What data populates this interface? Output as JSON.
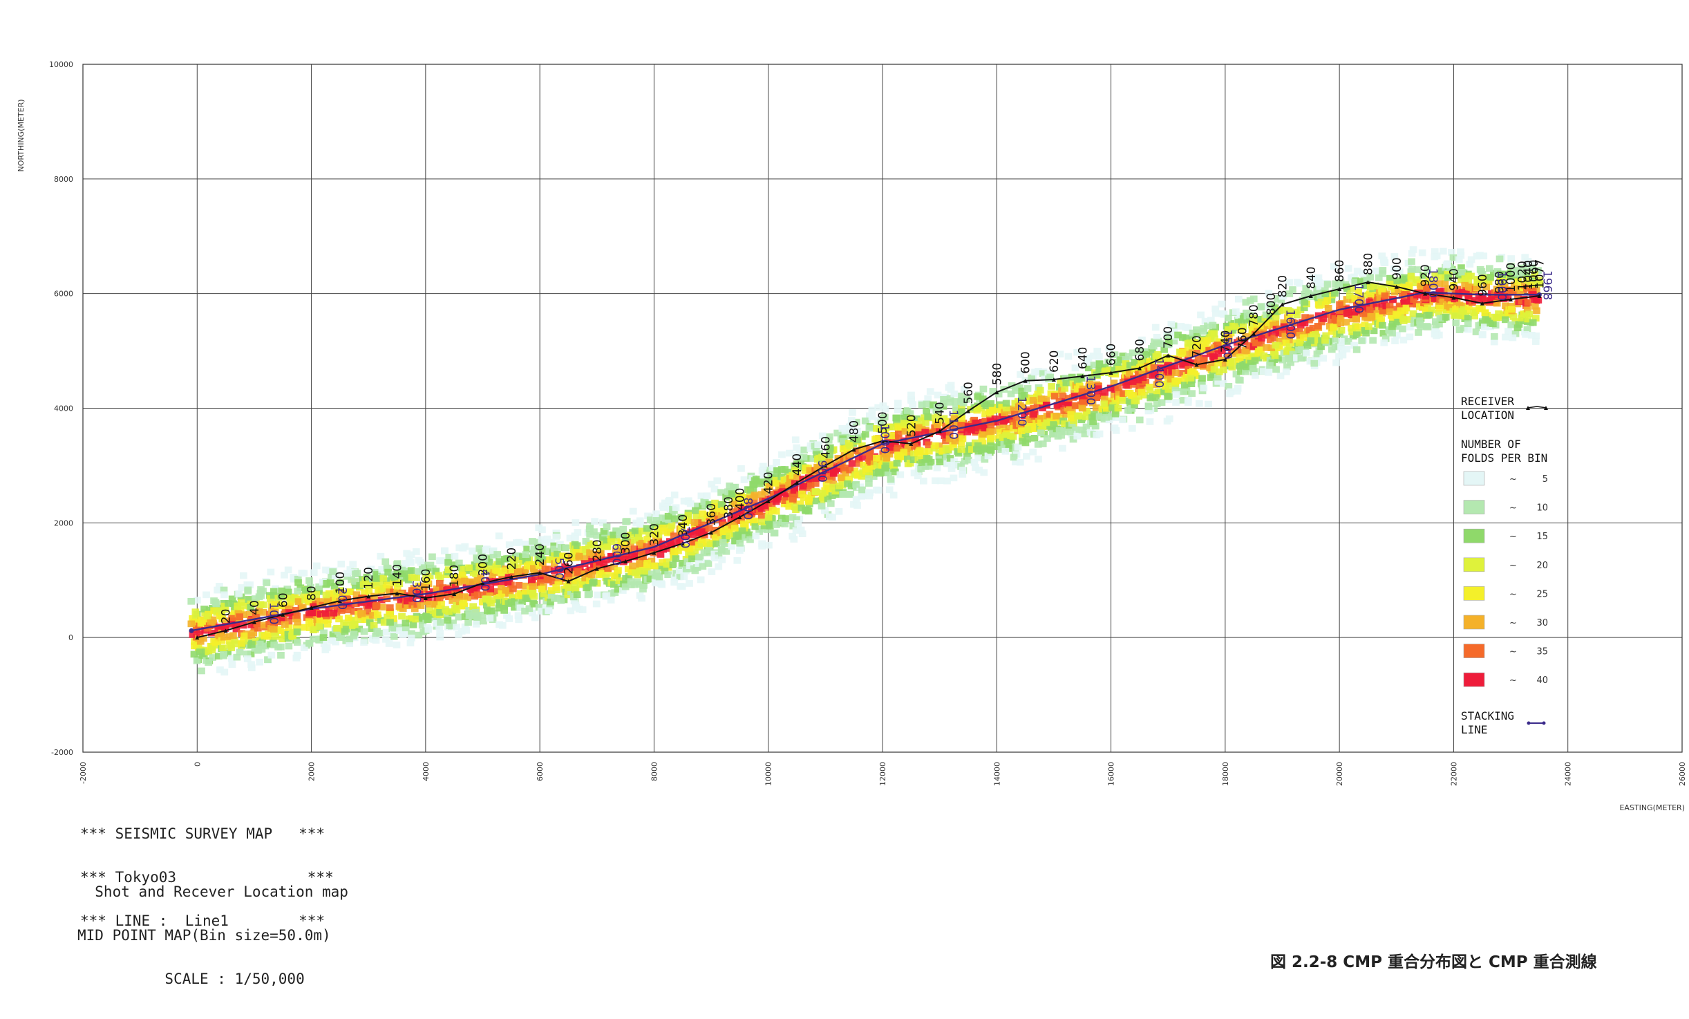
{
  "chart_data": {
    "type": "heatmap",
    "xlabel": "EASTING(METER)",
    "ylabel": "NORTHING(METER)",
    "xlim": [
      -2000,
      26000
    ],
    "ylim": [
      -2000,
      10000
    ],
    "x_ticks": [
      -2000,
      0,
      2000,
      4000,
      6000,
      8000,
      10000,
      12000,
      14000,
      16000,
      18000,
      20000,
      22000,
      24000,
      26000
    ],
    "y_ticks": [
      -2000,
      0,
      2000,
      4000,
      6000,
      8000,
      10000
    ],
    "grid": true,
    "receiver_line": [
      [
        0,
        0
      ],
      [
        500,
        120
      ],
      [
        1000,
        270
      ],
      [
        1500,
        400
      ],
      [
        2000,
        520
      ],
      [
        2500,
        640
      ],
      [
        3000,
        720
      ],
      [
        3500,
        770
      ],
      [
        4000,
        690
      ],
      [
        4500,
        760
      ],
      [
        5000,
        950
      ],
      [
        5500,
        1060
      ],
      [
        6000,
        1130
      ],
      [
        6500,
        980
      ],
      [
        7000,
        1200
      ],
      [
        7500,
        1330
      ],
      [
        8000,
        1480
      ],
      [
        8500,
        1640
      ],
      [
        9000,
        1830
      ],
      [
        9500,
        2100
      ],
      [
        10000,
        2380
      ],
      [
        10500,
        2700
      ],
      [
        11000,
        3000
      ],
      [
        11500,
        3280
      ],
      [
        12000,
        3430
      ],
      [
        12500,
        3380
      ],
      [
        13000,
        3600
      ],
      [
        13500,
        3950
      ],
      [
        14000,
        4280
      ],
      [
        14500,
        4480
      ],
      [
        15000,
        4500
      ],
      [
        15500,
        4560
      ],
      [
        16000,
        4620
      ],
      [
        16500,
        4700
      ],
      [
        17000,
        4920
      ],
      [
        17500,
        4760
      ],
      [
        18000,
        4850
      ],
      [
        18500,
        5300
      ],
      [
        19000,
        5810
      ],
      [
        19500,
        5960
      ],
      [
        20000,
        6080
      ],
      [
        20500,
        6200
      ],
      [
        21000,
        6120
      ],
      [
        21500,
        6000
      ],
      [
        22000,
        5930
      ],
      [
        22500,
        5830
      ],
      [
        23000,
        5900
      ],
      [
        23500,
        5960
      ]
    ],
    "receiver_labels": [
      {
        "text": "20",
        "x": 500,
        "y": 120
      },
      {
        "text": "40",
        "x": 1000,
        "y": 270
      },
      {
        "text": "60",
        "x": 1500,
        "y": 400
      },
      {
        "text": "80",
        "x": 2000,
        "y": 520
      },
      {
        "text": "100",
        "x": 2500,
        "y": 640
      },
      {
        "text": "120",
        "x": 3000,
        "y": 720
      },
      {
        "text": "140",
        "x": 3500,
        "y": 770
      },
      {
        "text": "160",
        "x": 4000,
        "y": 690
      },
      {
        "text": "180",
        "x": 4500,
        "y": 760
      },
      {
        "text": "200",
        "x": 5000,
        "y": 950
      },
      {
        "text": "220",
        "x": 5500,
        "y": 1060
      },
      {
        "text": "240",
        "x": 6000,
        "y": 1130
      },
      {
        "text": "260",
        "x": 6500,
        "y": 980
      },
      {
        "text": "280",
        "x": 7000,
        "y": 1200
      },
      {
        "text": "300",
        "x": 7500,
        "y": 1330
      },
      {
        "text": "320",
        "x": 8000,
        "y": 1480
      },
      {
        "text": "340",
        "x": 8500,
        "y": 1640
      },
      {
        "text": "360",
        "x": 9000,
        "y": 1830
      },
      {
        "text": "380",
        "x": 9300,
        "y": 1950
      },
      {
        "text": "400",
        "x": 9500,
        "y": 2100
      },
      {
        "text": "420",
        "x": 10000,
        "y": 2380
      },
      {
        "text": "440",
        "x": 10500,
        "y": 2700
      },
      {
        "text": "460",
        "x": 11000,
        "y": 3000
      },
      {
        "text": "480",
        "x": 11500,
        "y": 3280
      },
      {
        "text": "500",
        "x": 12000,
        "y": 3430
      },
      {
        "text": "520",
        "x": 12500,
        "y": 3380
      },
      {
        "text": "540",
        "x": 13000,
        "y": 3600
      },
      {
        "text": "560",
        "x": 13500,
        "y": 3950
      },
      {
        "text": "580",
        "x": 14000,
        "y": 4280
      },
      {
        "text": "600",
        "x": 14500,
        "y": 4480
      },
      {
        "text": "620",
        "x": 15000,
        "y": 4500
      },
      {
        "text": "640",
        "x": 15500,
        "y": 4560
      },
      {
        "text": "660",
        "x": 16000,
        "y": 4620
      },
      {
        "text": "680",
        "x": 16500,
        "y": 4700
      },
      {
        "text": "700",
        "x": 17000,
        "y": 4920
      },
      {
        "text": "720",
        "x": 17500,
        "y": 4760
      },
      {
        "text": "740",
        "x": 18000,
        "y": 4850
      },
      {
        "text": "760",
        "x": 18300,
        "y": 4900
      },
      {
        "text": "780",
        "x": 18500,
        "y": 5300
      },
      {
        "text": "800",
        "x": 18800,
        "y": 5500
      },
      {
        "text": "820",
        "x": 19000,
        "y": 5810
      },
      {
        "text": "840",
        "x": 19500,
        "y": 5960
      },
      {
        "text": "860",
        "x": 20000,
        "y": 6080
      },
      {
        "text": "880",
        "x": 20500,
        "y": 6200
      },
      {
        "text": "900",
        "x": 21000,
        "y": 6120
      },
      {
        "text": "920",
        "x": 21500,
        "y": 6000
      },
      {
        "text": "940",
        "x": 22000,
        "y": 5930
      },
      {
        "text": "960",
        "x": 22500,
        "y": 5830
      },
      {
        "text": "980",
        "x": 22800,
        "y": 5880
      },
      {
        "text": "1000",
        "x": 23000,
        "y": 5900
      },
      {
        "text": "1020",
        "x": 23200,
        "y": 5930
      },
      {
        "text": "1040",
        "x": 23300,
        "y": 5940
      },
      {
        "text": "1060",
        "x": 23400,
        "y": 5950
      },
      {
        "text": "1077",
        "x": 23500,
        "y": 5960
      }
    ],
    "stacking_line": [
      [
        -100,
        120
      ],
      [
        2000,
        500
      ],
      [
        4000,
        760
      ],
      [
        6000,
        1100
      ],
      [
        8000,
        1580
      ],
      [
        10000,
        2420
      ],
      [
        12000,
        3380
      ],
      [
        14000,
        3780
      ],
      [
        16000,
        4380
      ],
      [
        18000,
        5100
      ],
      [
        20000,
        5720
      ],
      [
        21500,
        6020
      ],
      [
        22500,
        5980
      ],
      [
        23500,
        5980
      ]
    ],
    "stacking_labels": [
      {
        "text": "100",
        "x": 1200,
        "y": 320
      },
      {
        "text": "200",
        "x": 2400,
        "y": 580
      },
      {
        "text": "300",
        "x": 3700,
        "y": 700
      },
      {
        "text": "400",
        "x": 4900,
        "y": 900
      },
      {
        "text": "500",
        "x": 6200,
        "y": 1100
      },
      {
        "text": "600",
        "x": 7200,
        "y": 1350
      },
      {
        "text": "700",
        "x": 8400,
        "y": 1650
      },
      {
        "text": "800",
        "x": 9500,
        "y": 2150
      },
      {
        "text": "900",
        "x": 10800,
        "y": 2800
      },
      {
        "text": "1000",
        "x": 11900,
        "y": 3300
      },
      {
        "text": "1100",
        "x": 13100,
        "y": 3550
      },
      {
        "text": "1200",
        "x": 14300,
        "y": 3780
      },
      {
        "text": "1300",
        "x": 15500,
        "y": 4150
      },
      {
        "text": "1400",
        "x": 16700,
        "y": 4450
      },
      {
        "text": "1500",
        "x": 17900,
        "y": 4950
      },
      {
        "text": "1600",
        "x": 19000,
        "y": 5300
      },
      {
        "text": "1700",
        "x": 20200,
        "y": 5750
      },
      {
        "text": "1800",
        "x": 21500,
        "y": 6020
      },
      {
        "text": "1900",
        "x": 22700,
        "y": 5970
      },
      {
        "text": "1968",
        "x": 23500,
        "y": 5980
      }
    ],
    "fold_band": [
      [
        -100,
        130
      ],
      [
        2000,
        520
      ],
      [
        4000,
        800
      ],
      [
        6000,
        1130
      ],
      [
        8000,
        1600
      ],
      [
        10000,
        2450
      ],
      [
        12000,
        3400
      ],
      [
        14000,
        3820
      ],
      [
        16000,
        4400
      ],
      [
        18000,
        5100
      ],
      [
        20000,
        5720
      ],
      [
        21500,
        6050
      ],
      [
        22500,
        5990
      ],
      [
        23500,
        5980
      ]
    ],
    "fold_bins": {
      "size": 50,
      "band_width": 900
    },
    "legend": {
      "receiver_title": "RECEIVER\nLOCATION",
      "folds_title": "NUMBER OF\nFOLDS PER BIN",
      "stacking_title": "STACKING\nLINE",
      "fold_classes": [
        {
          "max": "5",
          "color": "#e4f6f6"
        },
        {
          "max": "10",
          "color": "#b4e8b0"
        },
        {
          "max": "15",
          "color": "#8fd96a"
        },
        {
          "max": "20",
          "color": "#dff23b"
        },
        {
          "max": "25",
          "color": "#f4f02a"
        },
        {
          "max": "30",
          "color": "#f4b12a"
        },
        {
          "max": "35",
          "color": "#f56a2a"
        },
        {
          "max": "40",
          "color": "#ee1c3a"
        }
      ],
      "tilde": "~",
      "placement": "right"
    },
    "colors": {
      "receiver": "#111111",
      "stacking": "#3a2a8a",
      "stacking_label": "#3a2a8a",
      "grid": "#444444"
    }
  },
  "info": {
    "title_lines": [
      "*** SEISMIC SURVEY MAP   ***",
      "*** Tokyo03               ***",
      "*** LINE :  Line1        ***"
    ],
    "map_lines": [
      "  Shot and Recever Location map",
      "MID POINT MAP(Bin size=50.0m)",
      "          SCALE : 1/50,000"
    ]
  },
  "caption": "図 2.2-8  CMP 重合分布図と CMP 重合測線"
}
